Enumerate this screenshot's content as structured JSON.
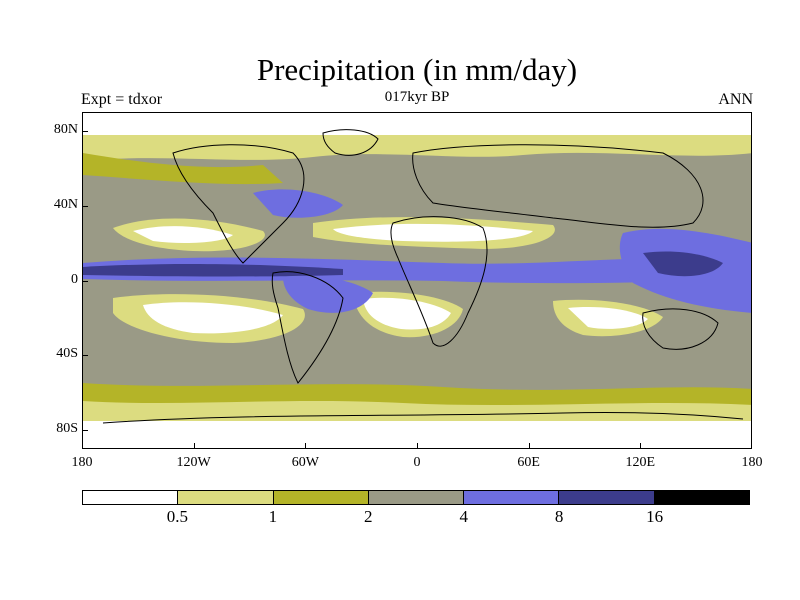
{
  "title": "Precipitation (in mm/day)",
  "left_label": "Expt = tdxor",
  "center_label": "017kyr BP",
  "right_label": "ANN",
  "axes": {
    "y_ticks": [
      {
        "label": "80N",
        "lat": 80
      },
      {
        "label": "40N",
        "lat": 40
      },
      {
        "label": "0",
        "lat": 0
      },
      {
        "label": "40S",
        "lat": -40
      },
      {
        "label": "80S",
        "lat": -80
      }
    ],
    "x_ticks": [
      {
        "label": "180",
        "lon": -180
      },
      {
        "label": "120W",
        "lon": -120
      },
      {
        "label": "60W",
        "lon": -60
      },
      {
        "label": "0",
        "lon": 0
      },
      {
        "label": "60E",
        "lon": 60
      },
      {
        "label": "120E",
        "lon": 120
      },
      {
        "label": "180",
        "lon": 180
      }
    ],
    "lon_range": [
      -180,
      180
    ],
    "lat_range": [
      -90,
      90
    ]
  },
  "colorbar": {
    "colors": [
      "#ffffff",
      "#dcdc80",
      "#b4b428",
      "#9a9a86",
      "#6e6ee0",
      "#3c3c8c",
      "#000000"
    ],
    "labels": [
      {
        "text": "0.5",
        "boundary": 1
      },
      {
        "text": "1",
        "boundary": 2
      },
      {
        "text": "2",
        "boundary": 3
      },
      {
        "text": "4",
        "boundary": 4
      },
      {
        "text": "8",
        "boundary": 5
      },
      {
        "text": "16",
        "boundary": 6
      }
    ]
  }
}
